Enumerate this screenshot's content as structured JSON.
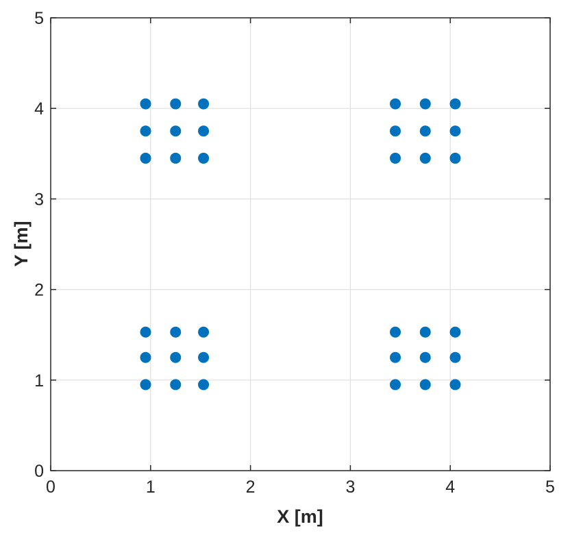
{
  "chart_data": {
    "type": "scatter",
    "title": "",
    "xlabel": "X [m]",
    "ylabel": "Y [m]",
    "xlim": [
      0,
      5
    ],
    "ylim": [
      0,
      5
    ],
    "xticks": [
      0,
      1,
      2,
      3,
      4,
      5
    ],
    "yticks": [
      0,
      1,
      2,
      3,
      4,
      5
    ],
    "grid": true,
    "box": true,
    "series": [
      {
        "color": "#0072bd",
        "points": [
          [
            0.95,
            4.05
          ],
          [
            1.25,
            4.05
          ],
          [
            1.53,
            4.05
          ],
          [
            0.95,
            3.75
          ],
          [
            1.25,
            3.75
          ],
          [
            1.53,
            3.75
          ],
          [
            0.95,
            3.45
          ],
          [
            1.25,
            3.45
          ],
          [
            1.53,
            3.45
          ],
          [
            3.45,
            4.05
          ],
          [
            3.75,
            4.05
          ],
          [
            4.05,
            4.05
          ],
          [
            3.45,
            3.75
          ],
          [
            3.75,
            3.75
          ],
          [
            4.05,
            3.75
          ],
          [
            3.45,
            3.45
          ],
          [
            3.75,
            3.45
          ],
          [
            4.05,
            3.45
          ],
          [
            0.95,
            1.53
          ],
          [
            1.25,
            1.53
          ],
          [
            1.53,
            1.53
          ],
          [
            0.95,
            1.25
          ],
          [
            1.25,
            1.25
          ],
          [
            1.53,
            1.25
          ],
          [
            0.95,
            0.95
          ],
          [
            1.25,
            0.95
          ],
          [
            1.53,
            0.95
          ],
          [
            3.45,
            1.53
          ],
          [
            3.75,
            1.53
          ],
          [
            4.05,
            1.53
          ],
          [
            3.45,
            1.25
          ],
          [
            3.75,
            1.25
          ],
          [
            4.05,
            1.25
          ],
          [
            3.45,
            0.95
          ],
          [
            3.75,
            0.95
          ],
          [
            4.05,
            0.95
          ]
        ]
      }
    ],
    "colors": {
      "grid": "#dfdfdf",
      "axes": "#262626"
    }
  }
}
